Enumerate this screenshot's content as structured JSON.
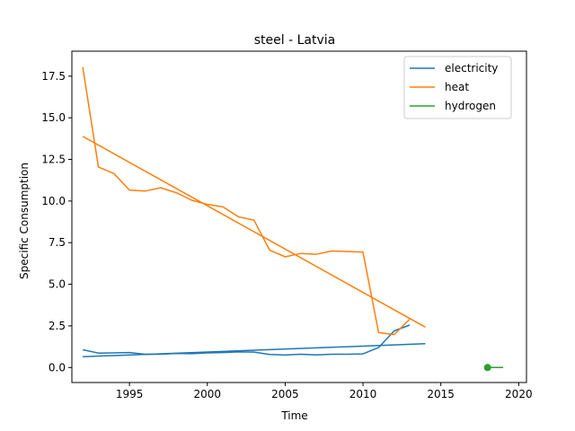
{
  "chart_data": {
    "type": "line",
    "title": "steel - Latvia",
    "xlabel": "Time",
    "ylabel": "Specific Consumption",
    "xlim": [
      1991.3,
      2020.5
    ],
    "ylim": [
      -0.9,
      19.0
    ],
    "xticks": [
      1995,
      2000,
      2005,
      2010,
      2015,
      2020
    ],
    "yticks": [
      0.0,
      2.5,
      5.0,
      7.5,
      10.0,
      12.5,
      15.0,
      17.5
    ],
    "xtick_labels": [
      "1995",
      "2000",
      "2005",
      "2010",
      "2015",
      "2020"
    ],
    "ytick_labels": [
      "0.0",
      "2.5",
      "5.0",
      "7.5",
      "10.0",
      "12.5",
      "15.0",
      "17.5"
    ],
    "grid": false,
    "legend_position": "top-right",
    "legend": [
      "electricity",
      "heat",
      "hydrogen"
    ],
    "series": [
      {
        "name": "electricity",
        "color": "#1f77b4",
        "x": [
          1992,
          1993,
          1994,
          1995,
          1996,
          1997,
          1998,
          1999,
          2000,
          2001,
          2002,
          2003,
          2004,
          2005,
          2006,
          2007,
          2008,
          2009,
          2010,
          2011,
          2012,
          2013
        ],
        "y": [
          1.07,
          0.87,
          0.88,
          0.9,
          0.8,
          0.8,
          0.85,
          0.83,
          0.88,
          0.9,
          0.94,
          0.93,
          0.79,
          0.75,
          0.8,
          0.76,
          0.8,
          0.8,
          0.82,
          1.2,
          2.2,
          2.55
        ]
      },
      {
        "name": "electricity trend",
        "color": "#1f77b4",
        "x": [
          1992,
          2014
        ],
        "y": [
          0.65,
          1.43
        ]
      },
      {
        "name": "heat",
        "color": "#ff7f0e",
        "x": [
          1992,
          1993,
          1994,
          1995,
          1996,
          1997,
          1998,
          1999,
          2000,
          2001,
          2002,
          2003,
          2004,
          2005,
          2006,
          2007,
          2008,
          2009,
          2010,
          2011,
          2012,
          2013
        ],
        "y": [
          18.05,
          12.05,
          11.65,
          10.65,
          10.6,
          10.8,
          10.5,
          10.05,
          9.8,
          9.65,
          9.05,
          8.85,
          7.05,
          6.65,
          6.85,
          6.8,
          7.0,
          6.97,
          6.93,
          2.1,
          1.98,
          2.9
        ]
      },
      {
        "name": "heat trend",
        "color": "#ff7f0e",
        "x": [
          1992,
          2014
        ],
        "y": [
          13.88,
          2.43
        ]
      },
      {
        "name": "hydrogen",
        "color": "#2ca02c",
        "x": [
          2018,
          2019
        ],
        "y": [
          0.0,
          0.0
        ],
        "marker_index": 0
      }
    ]
  }
}
